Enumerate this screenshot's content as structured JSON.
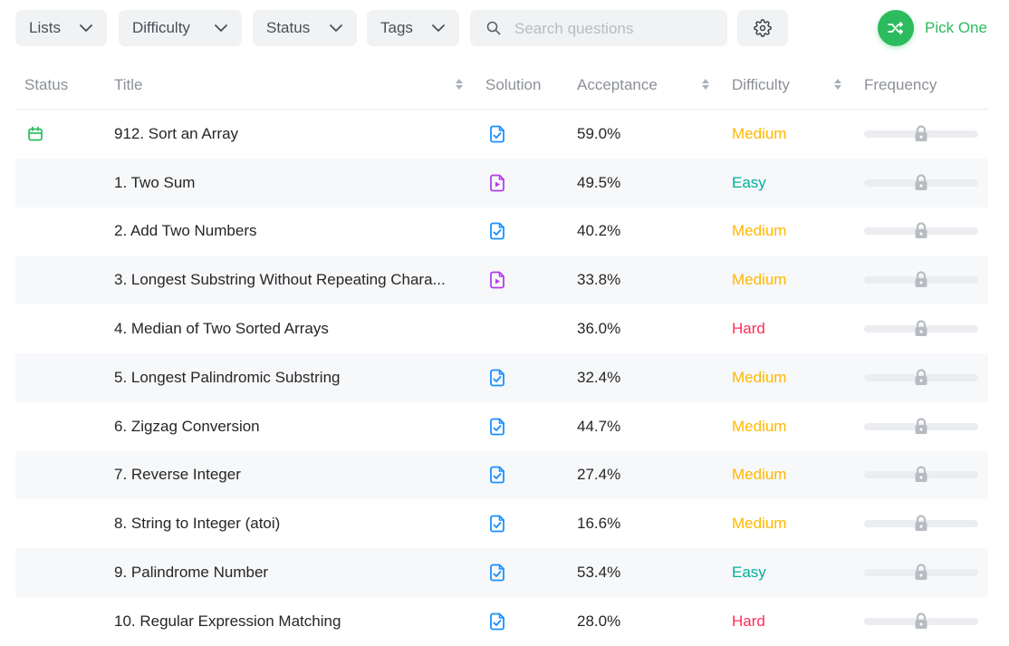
{
  "filters": [
    {
      "label": "Lists",
      "icon": "chevron-down-icon"
    },
    {
      "label": "Difficulty",
      "icon": "chevron-down-icon"
    },
    {
      "label": "Status",
      "icon": "chevron-down-icon"
    },
    {
      "label": "Tags",
      "icon": "chevron-down-icon"
    }
  ],
  "search": {
    "placeholder": "Search questions",
    "value": "",
    "icon": "search-icon"
  },
  "settings": {
    "icon": "gear-icon"
  },
  "pick_one": {
    "label": "Pick One",
    "icon": "shuffle-icon"
  },
  "columns": {
    "status": "Status",
    "title": "Title",
    "solution": "Solution",
    "acceptance": "Acceptance",
    "difficulty": "Difficulty",
    "frequency": "Frequency"
  },
  "colors": {
    "accent": "#2cbb5d",
    "easy": "#00af9b",
    "medium": "#ffb800",
    "hard": "#ff2d55",
    "solution_article": "#1a90ff",
    "solution_video": "#b33de8"
  },
  "rows": [
    {
      "status_icon": "calendar-icon",
      "title": "912. Sort an Array",
      "solution": "article",
      "acceptance": "59.0%",
      "difficulty": "Medium",
      "frequency_icon": "lock-icon"
    },
    {
      "status_icon": "",
      "title": "1. Two Sum",
      "solution": "video",
      "acceptance": "49.5%",
      "difficulty": "Easy",
      "frequency_icon": "lock-icon"
    },
    {
      "status_icon": "",
      "title": "2. Add Two Numbers",
      "solution": "article",
      "acceptance": "40.2%",
      "difficulty": "Medium",
      "frequency_icon": "lock-icon"
    },
    {
      "status_icon": "",
      "title": "3. Longest Substring Without Repeating Chara...",
      "solution": "video",
      "acceptance": "33.8%",
      "difficulty": "Medium",
      "frequency_icon": "lock-icon"
    },
    {
      "status_icon": "",
      "title": "4. Median of Two Sorted Arrays",
      "solution": "",
      "acceptance": "36.0%",
      "difficulty": "Hard",
      "frequency_icon": "lock-icon"
    },
    {
      "status_icon": "",
      "title": "5. Longest Palindromic Substring",
      "solution": "article",
      "acceptance": "32.4%",
      "difficulty": "Medium",
      "frequency_icon": "lock-icon"
    },
    {
      "status_icon": "",
      "title": "6. Zigzag Conversion",
      "solution": "article",
      "acceptance": "44.7%",
      "difficulty": "Medium",
      "frequency_icon": "lock-icon"
    },
    {
      "status_icon": "",
      "title": "7. Reverse Integer",
      "solution": "article",
      "acceptance": "27.4%",
      "difficulty": "Medium",
      "frequency_icon": "lock-icon"
    },
    {
      "status_icon": "",
      "title": "8. String to Integer (atoi)",
      "solution": "article",
      "acceptance": "16.6%",
      "difficulty": "Medium",
      "frequency_icon": "lock-icon"
    },
    {
      "status_icon": "",
      "title": "9. Palindrome Number",
      "solution": "article",
      "acceptance": "53.4%",
      "difficulty": "Easy",
      "frequency_icon": "lock-icon"
    },
    {
      "status_icon": "",
      "title": "10. Regular Expression Matching",
      "solution": "article",
      "acceptance": "28.0%",
      "difficulty": "Hard",
      "frequency_icon": "lock-icon"
    }
  ]
}
